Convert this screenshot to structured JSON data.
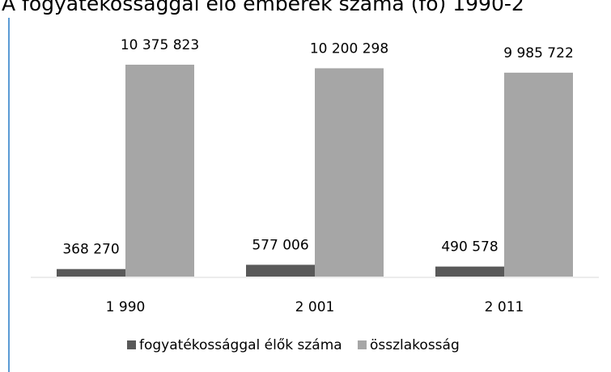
{
  "chart_data": {
    "type": "bar",
    "title": "A fogyatékossággal élő emberek száma (fő) 1990-2",
    "categories": [
      "1 990",
      "2 001",
      "2 011"
    ],
    "series": [
      {
        "name": "fogyatékossággal élők száma",
        "color": "#595959",
        "values": [
          368270,
          577006,
          490578
        ],
        "value_labels": [
          "368 270",
          "577 006",
          "490 578"
        ]
      },
      {
        "name": "összlakosság",
        "color": "#a6a6a6",
        "values": [
          10375823,
          10200298,
          9985722
        ],
        "value_labels": [
          "10 375 823",
          "10 200 298",
          "9 985 722"
        ]
      }
    ]
  }
}
